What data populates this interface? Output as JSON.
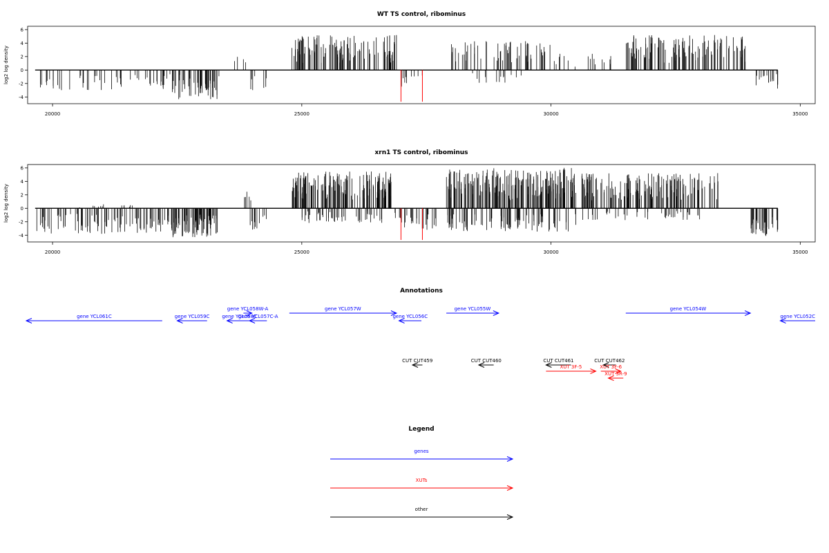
{
  "colors": {
    "bars": "#000000",
    "highlight": "#ff0000",
    "genes": "#0000ff",
    "xuts": "#ff0000",
    "other": "#000000",
    "axes": "#000000"
  },
  "chart_data": [
    {
      "type": "bar",
      "title": "WT TS control, ribominus",
      "ylabel": "log2 log density",
      "xlim": [
        19500,
        35300
      ],
      "ylim": [
        -5,
        6.5
      ],
      "xticks": [
        20000,
        25000,
        30000,
        35000
      ],
      "yticks": [
        -4,
        -2,
        0,
        2,
        4,
        6
      ],
      "data_range": [
        19650,
        34550
      ],
      "highlights": [
        {
          "x": 26990,
          "y": -4.7
        },
        {
          "x": 27420,
          "y": -4.7
        }
      ],
      "segments": [
        {
          "from": 19650,
          "to": 23350,
          "sign": -1,
          "max": 3.0,
          "density": 0.5
        },
        {
          "from": 22400,
          "to": 23300,
          "sign": -1,
          "max": 4.5,
          "density": 1.2
        },
        {
          "from": 23600,
          "to": 23950,
          "sign": 1,
          "max": 2.2,
          "density": 0.3
        },
        {
          "from": 23950,
          "to": 24300,
          "sign": -1,
          "max": 3.2,
          "density": 0.6
        },
        {
          "from": 24800,
          "to": 26900,
          "sign": 1,
          "max": 5.2,
          "density": 1.6
        },
        {
          "from": 26950,
          "to": 27500,
          "sign": -1,
          "max": 2.5,
          "density": 0.5
        },
        {
          "from": 28000,
          "to": 30000,
          "sign": 1,
          "max": 4.3,
          "density": 0.9
        },
        {
          "from": 28200,
          "to": 29500,
          "sign": -1,
          "max": 2.0,
          "density": 0.3
        },
        {
          "from": 30000,
          "to": 31200,
          "sign": 1,
          "max": 2.5,
          "density": 0.4
        },
        {
          "from": 31500,
          "to": 33900,
          "sign": 1,
          "max": 5.2,
          "density": 1.4
        },
        {
          "from": 34100,
          "to": 34550,
          "sign": -1,
          "max": 2.8,
          "density": 1.0
        }
      ]
    },
    {
      "type": "bar",
      "title": "xrn1 TS control, ribominus",
      "ylabel": "log2 log density",
      "xlim": [
        19500,
        35300
      ],
      "ylim": [
        -5,
        6.5
      ],
      "xticks": [
        20000,
        25000,
        30000,
        35000
      ],
      "yticks": [
        -4,
        -2,
        0,
        2,
        4,
        6
      ],
      "data_range": [
        19650,
        34550
      ],
      "highlights": [
        {
          "x": 26990,
          "y": -4.7
        },
        {
          "x": 27420,
          "y": -4.7
        }
      ],
      "segments": [
        {
          "from": 19650,
          "to": 23350,
          "sign": -1,
          "max": 3.8,
          "density": 0.9
        },
        {
          "from": 20500,
          "to": 21700,
          "sign": 1,
          "max": 0.6,
          "density": 0.3
        },
        {
          "from": 22300,
          "to": 23300,
          "sign": -1,
          "max": 4.5,
          "density": 1.5
        },
        {
          "from": 23700,
          "to": 24000,
          "sign": 1,
          "max": 2.6,
          "density": 0.5
        },
        {
          "from": 23950,
          "to": 24300,
          "sign": -1,
          "max": 3.2,
          "density": 1.0
        },
        {
          "from": 24800,
          "to": 26800,
          "sign": 1,
          "max": 5.5,
          "density": 2.2
        },
        {
          "from": 25000,
          "to": 26700,
          "sign": -1,
          "max": 2.2,
          "density": 0.8
        },
        {
          "from": 26850,
          "to": 27700,
          "sign": -1,
          "max": 3.2,
          "density": 0.9
        },
        {
          "from": 27900,
          "to": 30500,
          "sign": 1,
          "max": 6.0,
          "density": 2.2
        },
        {
          "from": 27900,
          "to": 30500,
          "sign": -1,
          "max": 3.5,
          "density": 1.0
        },
        {
          "from": 30600,
          "to": 33400,
          "sign": 1,
          "max": 5.3,
          "density": 1.6
        },
        {
          "from": 30600,
          "to": 33000,
          "sign": -1,
          "max": 1.8,
          "density": 0.5
        },
        {
          "from": 33950,
          "to": 34550,
          "sign": -1,
          "max": 4.2,
          "density": 1.8
        }
      ]
    }
  ],
  "annotations": {
    "title": "Annotations",
    "xlim": [
      19500,
      35300
    ],
    "features": [
      {
        "label": "gene YCL061C",
        "start": 22200,
        "end": 19450,
        "row": 1,
        "class": "genes",
        "label_row": 1
      },
      {
        "label": "gene YCL059C",
        "start": 23100,
        "end": 22500,
        "row": 1,
        "class": "genes",
        "label_row": 1
      },
      {
        "label": "gene YCL058W-A",
        "start": 23830,
        "end": 24000,
        "row": 0,
        "class": "genes",
        "label_row": 0
      },
      {
        "label": "gene YCL058C",
        "start": 24000,
        "end": 23500,
        "row": 1,
        "class": "genes",
        "label_row": 1
      },
      {
        "label": "gene YCL057C-A",
        "start": 24300,
        "end": 23950,
        "row": 1,
        "class": "genes",
        "label_row": 1
      },
      {
        "label": "gene YCL057W",
        "start": 24750,
        "end": 26900,
        "row": 0,
        "class": "genes",
        "label_row": 0
      },
      {
        "label": "gene YCL056C",
        "start": 27400,
        "end": 26950,
        "row": 1,
        "class": "genes",
        "label_row": 1
      },
      {
        "label": "gene YCL055W",
        "start": 27900,
        "end": 28950,
        "row": 0,
        "class": "genes",
        "label_row": 0
      },
      {
        "label": "gene YCL054W",
        "start": 31500,
        "end": 34000,
        "row": 0,
        "class": "genes",
        "label_row": 0
      },
      {
        "label": "gene YCL052C",
        "start": 35300,
        "end": 34600,
        "row": 1,
        "class": "genes",
        "label_row": 1
      },
      {
        "label": "CUT CUT459",
        "start": 27420,
        "end": 27220,
        "row": 2,
        "class": "other",
        "label_row": 2
      },
      {
        "label": "CUT CUT460",
        "start": 28850,
        "end": 28550,
        "row": 2,
        "class": "other",
        "label_row": 2
      },
      {
        "label": "CUT CUT461",
        "start": 30400,
        "end": 29900,
        "row": 2,
        "class": "other",
        "label_row": 2
      },
      {
        "label": "CUT CUT462",
        "start": 31300,
        "end": 31050,
        "row": 2,
        "class": "other",
        "label_row": 2
      },
      {
        "label": "XUT 3F-5",
        "start": 29900,
        "end": 30900,
        "row": 3,
        "class": "xuts",
        "label_row": 3
      },
      {
        "label": "XUT 3F-6",
        "start": 31000,
        "end": 31400,
        "row": 3,
        "class": "xuts",
        "label_row": 3
      },
      {
        "label": "XUT 3R-9",
        "start": 31450,
        "end": 31150,
        "row": 4,
        "class": "xuts",
        "label_row": 4
      }
    ]
  },
  "legend": {
    "title": "Legend",
    "items": [
      {
        "label": "genes",
        "class": "genes"
      },
      {
        "label": "XUTs",
        "class": "xuts"
      },
      {
        "label": "other",
        "class": "other"
      }
    ]
  }
}
